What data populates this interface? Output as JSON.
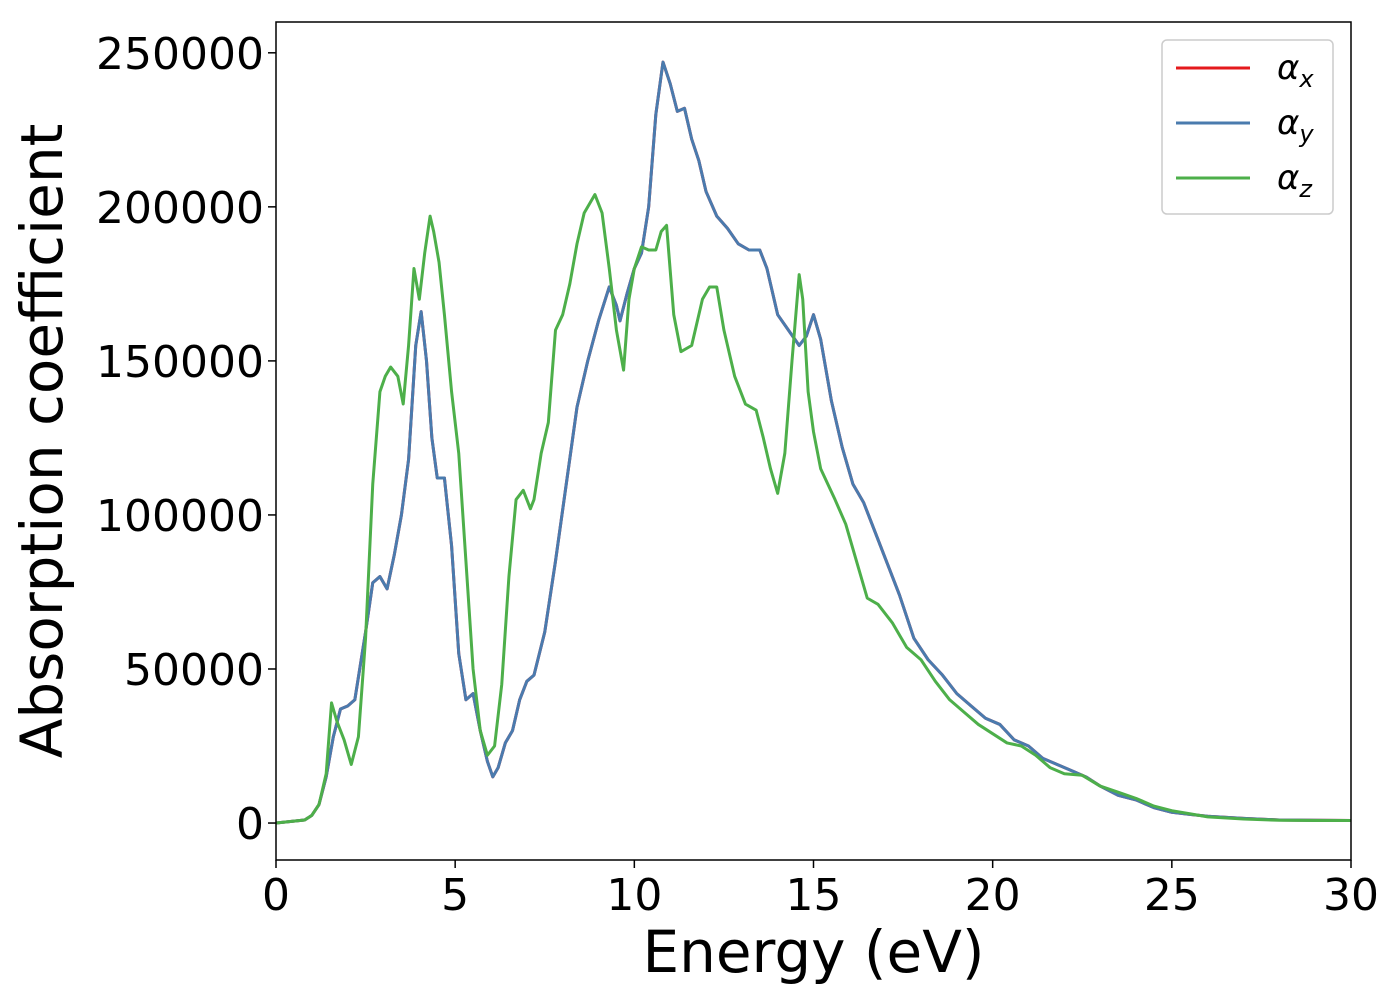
{
  "chart_data": {
    "type": "line",
    "title": "",
    "xlabel": "Energy (eV)",
    "ylabel": "Absorption coefficient",
    "xlim": [
      0,
      30
    ],
    "ylim": [
      -12000,
      260000
    ],
    "xticks": [
      0,
      5,
      10,
      15,
      20,
      25,
      30
    ],
    "yticks": [
      0,
      50000,
      100000,
      150000,
      200000,
      250000
    ],
    "grid": false,
    "legend_position": "top-right",
    "series": [
      {
        "name": "α_x",
        "symbol": "α",
        "subscript": "x",
        "color": "#e41a1c",
        "x": [
          0,
          0.8,
          1.0,
          1.2,
          1.4,
          1.6,
          1.8,
          2.0,
          2.2,
          2.5,
          2.7,
          2.9,
          3.1,
          3.3,
          3.5,
          3.7,
          3.9,
          4.05,
          4.2,
          4.35,
          4.5,
          4.7,
          4.9,
          5.1,
          5.3,
          5.5,
          5.7,
          5.9,
          6.05,
          6.2,
          6.4,
          6.6,
          6.8,
          7.0,
          7.2,
          7.5,
          7.8,
          8.1,
          8.4,
          8.7,
          9.0,
          9.3,
          9.5,
          9.6,
          9.8,
          10.0,
          10.2,
          10.4,
          10.6,
          10.8,
          11.0,
          11.2,
          11.4,
          11.6,
          11.8,
          12.0,
          12.3,
          12.6,
          12.9,
          13.2,
          13.5,
          13.7,
          14.0,
          14.3,
          14.6,
          14.8,
          15.0,
          15.2,
          15.5,
          15.8,
          16.1,
          16.4,
          16.7,
          17.0,
          17.4,
          17.8,
          18.2,
          18.6,
          19.0,
          19.4,
          19.8,
          20.2,
          20.6,
          21.0,
          21.4,
          21.8,
          22.2,
          22.6,
          23.0,
          23.5,
          24.0,
          24.5,
          25.0,
          25.5,
          26.0,
          27.0,
          28.0,
          29.0,
          30.0
        ],
        "values": [
          0,
          1000,
          2500,
          6000,
          15000,
          28000,
          37000,
          38000,
          40000,
          62000,
          78000,
          80000,
          76000,
          87000,
          100000,
          118000,
          155000,
          166000,
          150000,
          125000,
          112000,
          112000,
          90000,
          55000,
          40000,
          42000,
          30000,
          20000,
          15000,
          18000,
          26000,
          30000,
          40000,
          46000,
          48000,
          62000,
          85000,
          110000,
          135000,
          150000,
          163000,
          174000,
          168000,
          163000,
          172000,
          180000,
          185000,
          200000,
          230000,
          247000,
          240000,
          231000,
          232000,
          222000,
          215000,
          205000,
          197000,
          193000,
          188000,
          186000,
          186000,
          180000,
          165000,
          160000,
          155000,
          158000,
          165000,
          157000,
          137000,
          122000,
          110000,
          104000,
          95000,
          86000,
          74000,
          60000,
          53000,
          48000,
          42000,
          38000,
          34000,
          32000,
          27000,
          25000,
          21000,
          19000,
          17000,
          15000,
          12000,
          9000,
          7500,
          5000,
          3500,
          2800,
          2200,
          1500,
          1000,
          900,
          800
        ]
      },
      {
        "name": "α_y",
        "symbol": "α",
        "subscript": "y",
        "color": "#4a7bae",
        "x": [
          0,
          0.8,
          1.0,
          1.2,
          1.4,
          1.6,
          1.8,
          2.0,
          2.2,
          2.5,
          2.7,
          2.9,
          3.1,
          3.3,
          3.5,
          3.7,
          3.9,
          4.05,
          4.2,
          4.35,
          4.5,
          4.7,
          4.9,
          5.1,
          5.3,
          5.5,
          5.7,
          5.9,
          6.05,
          6.2,
          6.4,
          6.6,
          6.8,
          7.0,
          7.2,
          7.5,
          7.8,
          8.1,
          8.4,
          8.7,
          9.0,
          9.3,
          9.5,
          9.6,
          9.8,
          10.0,
          10.2,
          10.4,
          10.6,
          10.8,
          11.0,
          11.2,
          11.4,
          11.6,
          11.8,
          12.0,
          12.3,
          12.6,
          12.9,
          13.2,
          13.5,
          13.7,
          14.0,
          14.3,
          14.6,
          14.8,
          15.0,
          15.2,
          15.5,
          15.8,
          16.1,
          16.4,
          16.7,
          17.0,
          17.4,
          17.8,
          18.2,
          18.6,
          19.0,
          19.4,
          19.8,
          20.2,
          20.6,
          21.0,
          21.4,
          21.8,
          22.2,
          22.6,
          23.0,
          23.5,
          24.0,
          24.5,
          25.0,
          25.5,
          26.0,
          27.0,
          28.0,
          29.0,
          30.0
        ],
        "values": [
          0,
          1000,
          2500,
          6000,
          15000,
          28000,
          37000,
          38000,
          40000,
          62000,
          78000,
          80000,
          76000,
          87000,
          100000,
          118000,
          155000,
          166000,
          150000,
          125000,
          112000,
          112000,
          90000,
          55000,
          40000,
          42000,
          30000,
          20000,
          15000,
          18000,
          26000,
          30000,
          40000,
          46000,
          48000,
          62000,
          85000,
          110000,
          135000,
          150000,
          163000,
          174000,
          168000,
          163000,
          172000,
          180000,
          185000,
          200000,
          230000,
          247000,
          240000,
          231000,
          232000,
          222000,
          215000,
          205000,
          197000,
          193000,
          188000,
          186000,
          186000,
          180000,
          165000,
          160000,
          155000,
          158000,
          165000,
          157000,
          137000,
          122000,
          110000,
          104000,
          95000,
          86000,
          74000,
          60000,
          53000,
          48000,
          42000,
          38000,
          34000,
          32000,
          27000,
          25000,
          21000,
          19000,
          17000,
          15000,
          12000,
          9000,
          7500,
          5000,
          3500,
          2800,
          2200,
          1500,
          1000,
          900,
          800
        ]
      },
      {
        "name": "α_z",
        "symbol": "α",
        "subscript": "z",
        "color": "#4daf4a",
        "x": [
          0,
          0.8,
          1.0,
          1.2,
          1.4,
          1.55,
          1.7,
          1.9,
          2.1,
          2.3,
          2.5,
          2.7,
          2.9,
          3.05,
          3.2,
          3.4,
          3.55,
          3.7,
          3.85,
          4.0,
          4.15,
          4.3,
          4.4,
          4.55,
          4.7,
          4.9,
          5.1,
          5.3,
          5.5,
          5.7,
          5.9,
          6.1,
          6.3,
          6.5,
          6.7,
          6.9,
          7.1,
          7.2,
          7.4,
          7.6,
          7.8,
          8.0,
          8.2,
          8.4,
          8.6,
          8.9,
          9.1,
          9.3,
          9.5,
          9.7,
          9.85,
          10.0,
          10.2,
          10.4,
          10.6,
          10.75,
          10.9,
          11.1,
          11.3,
          11.6,
          11.9,
          12.1,
          12.3,
          12.5,
          12.8,
          13.1,
          13.4,
          13.6,
          13.8,
          14.0,
          14.2,
          14.4,
          14.6,
          14.7,
          14.85,
          15.0,
          15.2,
          15.4,
          15.6,
          15.9,
          16.2,
          16.5,
          16.8,
          17.2,
          17.6,
          18.0,
          18.4,
          18.8,
          19.2,
          19.6,
          20.0,
          20.4,
          20.8,
          21.2,
          21.6,
          22.0,
          22.5,
          23.0,
          23.5,
          24.0,
          24.5,
          25.0,
          25.5,
          26.0,
          27.0,
          28.0,
          29.0,
          30.0
        ],
        "values": [
          0,
          1000,
          2500,
          6000,
          16000,
          39000,
          33000,
          27000,
          19000,
          28000,
          60000,
          110000,
          140000,
          145000,
          148000,
          145000,
          136000,
          155000,
          180000,
          170000,
          185000,
          197000,
          192000,
          182000,
          165000,
          140000,
          120000,
          85000,
          50000,
          30000,
          22000,
          25000,
          45000,
          80000,
          105000,
          108000,
          102000,
          105000,
          120000,
          130000,
          160000,
          165000,
          175000,
          188000,
          198000,
          204000,
          198000,
          180000,
          160000,
          147000,
          170000,
          180000,
          187000,
          186000,
          186000,
          192000,
          194000,
          165000,
          153000,
          155000,
          170000,
          174000,
          174000,
          160000,
          145000,
          136000,
          134000,
          125000,
          115000,
          107000,
          120000,
          150000,
          178000,
          170000,
          140000,
          127000,
          115000,
          110000,
          105000,
          97000,
          85000,
          73000,
          71000,
          65000,
          57000,
          53000,
          46000,
          40000,
          36000,
          32000,
          29000,
          26000,
          25000,
          22000,
          18000,
          16000,
          15500,
          12000,
          10000,
          8000,
          5500,
          4000,
          3000,
          2000,
          1300,
          900,
          800,
          800
        ]
      }
    ]
  }
}
